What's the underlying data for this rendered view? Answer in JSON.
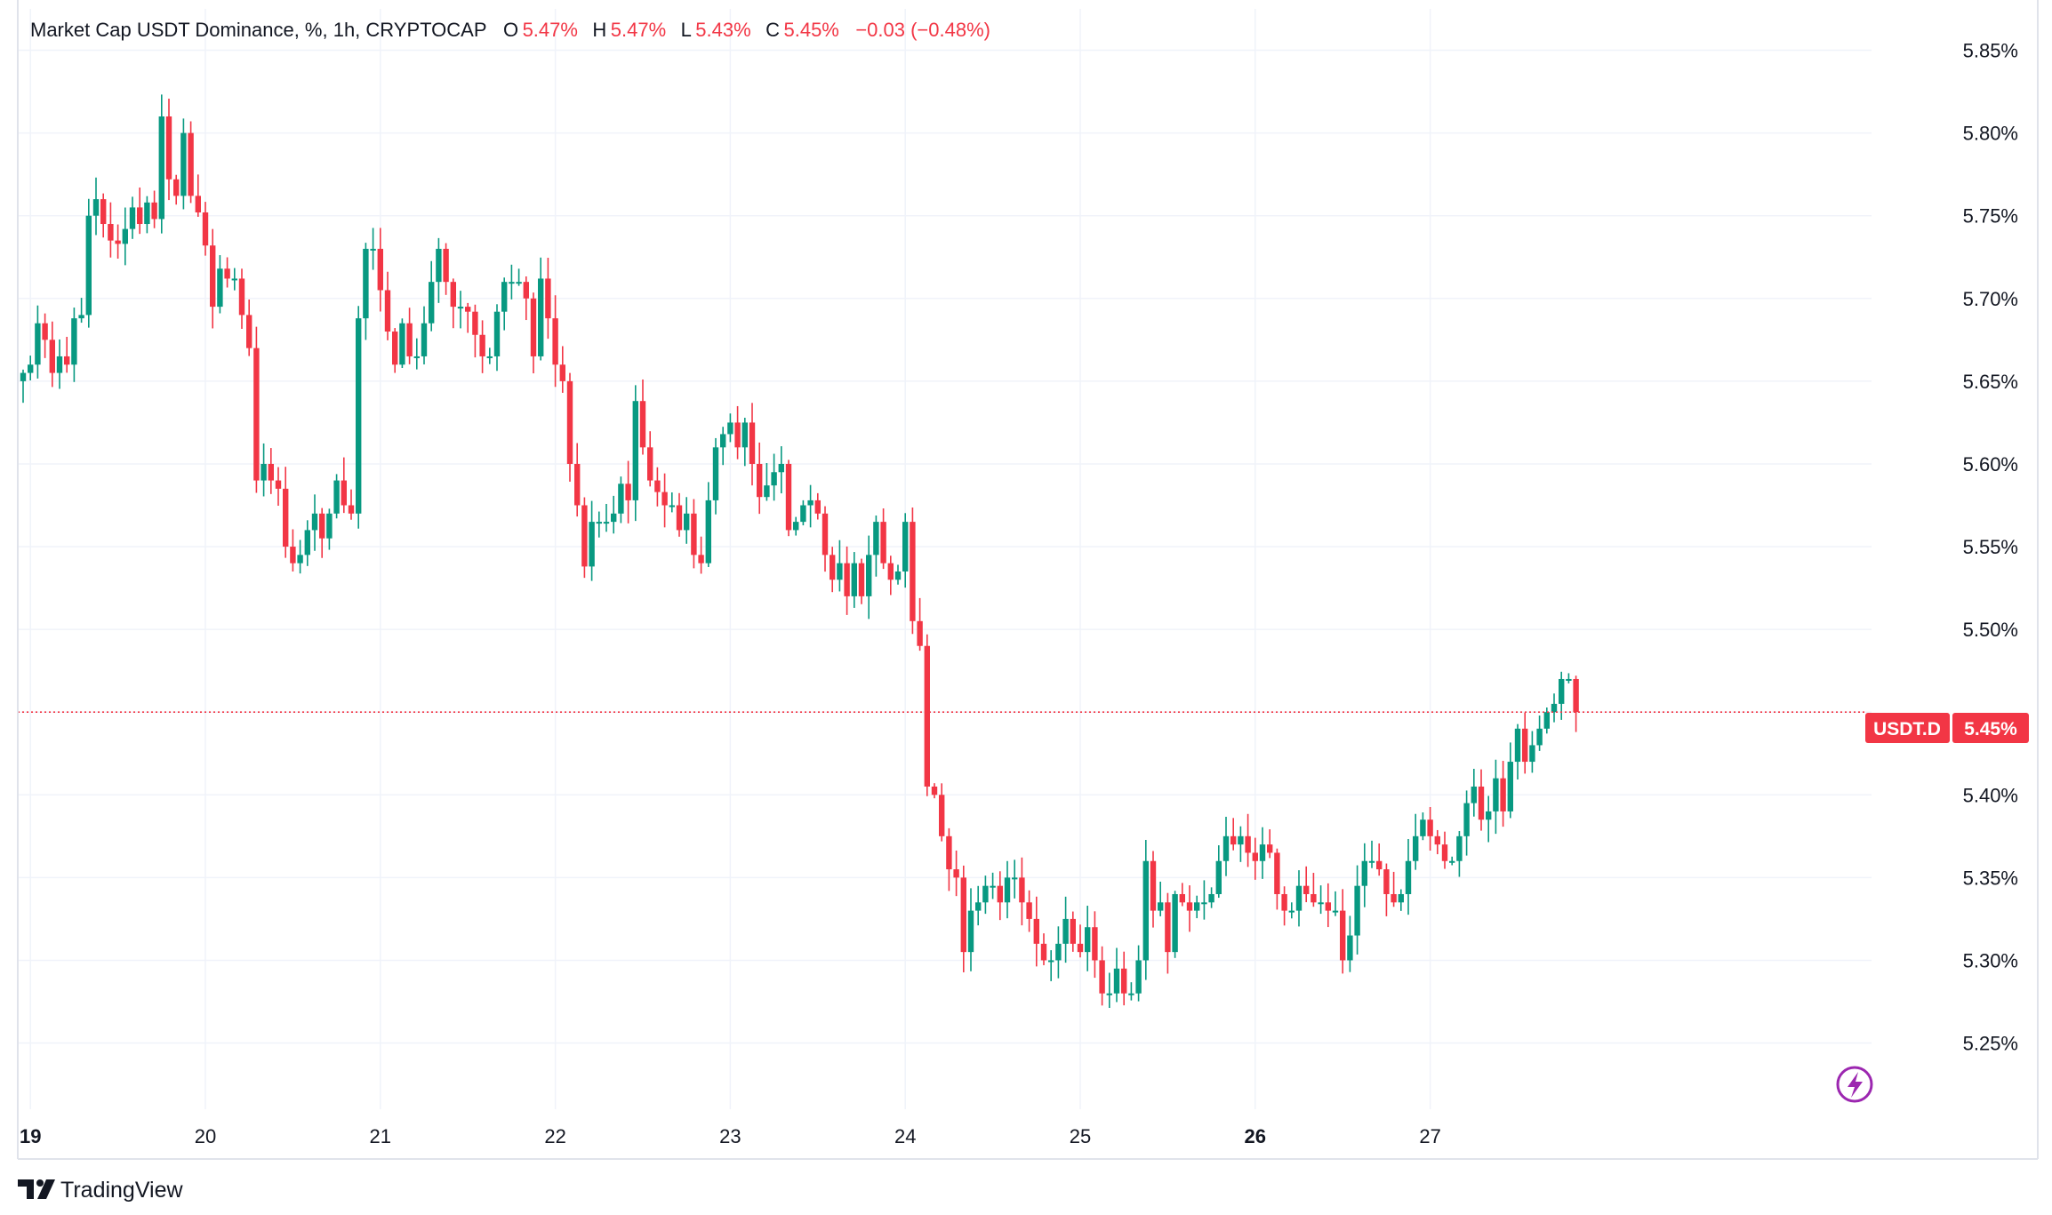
{
  "legend": {
    "symbol_desc": "Market Cap USDT Dominance, %, 1h, CRYPTOCAP",
    "o_label": "O",
    "o_value": "5.47%",
    "h_label": "H",
    "h_value": "5.47%",
    "l_label": "L",
    "l_value": "5.43%",
    "c_label": "C",
    "c_value": "5.45%",
    "change": "−0.03 (−0.48%)"
  },
  "price_tag": {
    "ticker": "USDT.D",
    "value": "5.45%"
  },
  "brand": {
    "name": "TradingView"
  },
  "colors": {
    "up": "#089981",
    "down": "#f23645",
    "grid": "#f0f3fa",
    "text": "#131722",
    "tag": "#f23645",
    "lightning": "#9c27b0"
  },
  "icons": {
    "logo": "tradingview-logo-icon",
    "lightning": "lightning-bolt-icon"
  },
  "chart_data": {
    "type": "candlestick",
    "title": "Market Cap USDT Dominance, %, 1h, CRYPTOCAP",
    "interval": "1h",
    "last_price": 5.45,
    "ylim": [
      5.21,
      5.875
    ],
    "y_ticks": [
      5.25,
      5.3,
      5.35,
      5.4,
      5.45,
      5.5,
      5.55,
      5.6,
      5.65,
      5.7,
      5.75,
      5.8,
      5.85
    ],
    "y_tick_labels": [
      "5.25%",
      "5.30%",
      "5.35%",
      "5.40%",
      "5.45%",
      "5.50%",
      "5.55%",
      "5.60%",
      "5.65%",
      "5.70%",
      "5.75%",
      "5.80%",
      "5.85%"
    ],
    "x_day_ticks": [
      {
        "label": "19",
        "pos": 1,
        "bold": true
      },
      {
        "label": "20",
        "pos": 25,
        "bold": false
      },
      {
        "label": "21",
        "pos": 49,
        "bold": false
      },
      {
        "label": "22",
        "pos": 73,
        "bold": false
      },
      {
        "label": "23",
        "pos": 97,
        "bold": false
      },
      {
        "label": "24",
        "pos": 121,
        "bold": false
      },
      {
        "label": "25",
        "pos": 145,
        "bold": false
      },
      {
        "label": "26",
        "pos": 169,
        "bold": true
      },
      {
        "label": "27",
        "pos": 193,
        "bold": false
      }
    ],
    "grid": true,
    "close": [
      5.655,
      5.66,
      5.685,
      5.675,
      5.655,
      5.665,
      5.66,
      5.688,
      5.69,
      5.75,
      5.76,
      5.745,
      5.735,
      5.733,
      5.742,
      5.755,
      5.745,
      5.758,
      5.748,
      5.81,
      5.772,
      5.762,
      5.8,
      5.762,
      5.752,
      5.732,
      5.695,
      5.718,
      5.712,
      5.712,
      5.69,
      5.67,
      5.59,
      5.6,
      5.59,
      5.585,
      5.55,
      5.54,
      5.545,
      5.56,
      5.57,
      5.555,
      5.57,
      5.59,
      5.575,
      5.57,
      5.688,
      5.73,
      5.73,
      5.705,
      5.68,
      5.66,
      5.685,
      5.665,
      5.665,
      5.685,
      5.71,
      5.73,
      5.71,
      5.695,
      5.695,
      5.692,
      5.678,
      5.665,
      5.665,
      5.692,
      5.71,
      5.71,
      5.71,
      5.7,
      5.665,
      5.712,
      5.688,
      5.66,
      5.65,
      5.6,
      5.575,
      5.538,
      5.565,
      5.565,
      5.565,
      5.57,
      5.588,
      5.578,
      5.638,
      5.61,
      5.59,
      5.583,
      5.575,
      5.575,
      5.56,
      5.57,
      5.545,
      5.54,
      5.578,
      5.61,
      5.618,
      5.625,
      5.61,
      5.625,
      5.6,
      5.58,
      5.587,
      5.595,
      5.6,
      5.56,
      5.565,
      5.575,
      5.578,
      5.57,
      5.545,
      5.53,
      5.54,
      5.52,
      5.54,
      5.52,
      5.545,
      5.565,
      5.54,
      5.53,
      5.535,
      5.565,
      5.505,
      5.49,
      5.405,
      5.4,
      5.375,
      5.355,
      5.35,
      5.305,
      5.33,
      5.335,
      5.345,
      5.345,
      5.335,
      5.35,
      5.35,
      5.335,
      5.325,
      5.31,
      5.3,
      5.3,
      5.31,
      5.325,
      5.31,
      5.305,
      5.32,
      5.3,
      5.28,
      5.28,
      5.295,
      5.28,
      5.28,
      5.3,
      5.36,
      5.33,
      5.335,
      5.305,
      5.34,
      5.335,
      5.33,
      5.335,
      5.335,
      5.34,
      5.36,
      5.375,
      5.37,
      5.375,
      5.365,
      5.36,
      5.37,
      5.365,
      5.34,
      5.33,
      5.33,
      5.345,
      5.34,
      5.335,
      5.335,
      5.33,
      5.33,
      5.3,
      5.315,
      5.345,
      5.36,
      5.36,
      5.355,
      5.34,
      5.335,
      5.34,
      5.36,
      5.375,
      5.385,
      5.375,
      5.37,
      5.36,
      5.36,
      5.375,
      5.395,
      5.405,
      5.385,
      5.39,
      5.41,
      5.39,
      5.42,
      5.44,
      5.42,
      5.43,
      5.44,
      5.45,
      5.455,
      5.47,
      5.47,
      5.45
    ]
  }
}
